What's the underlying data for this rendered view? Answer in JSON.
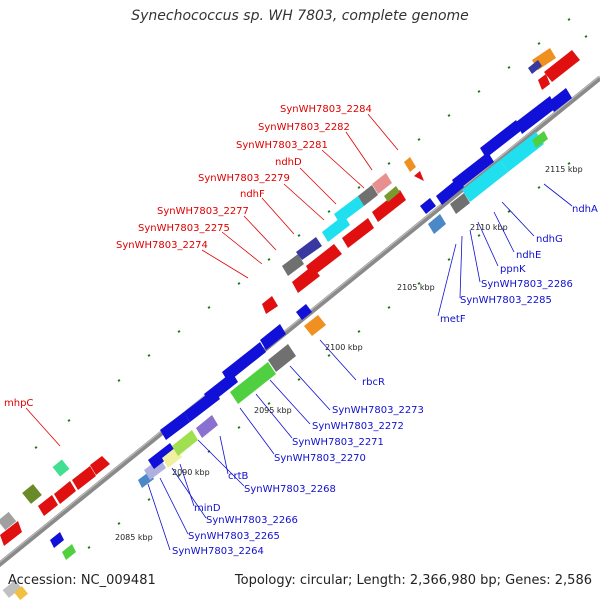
{
  "header": {
    "title": "Synechococcus sp. WH 7803, complete genome"
  },
  "footer": {
    "accession": "Accession: NC_009481",
    "summary": "Topology: circular; Length: 2,366,980 bp; Genes: 2,586"
  },
  "colors": {
    "reverse_strand": "#e01010",
    "forward_strand": "#1010d8",
    "backbone": "#8a8a8a",
    "tick": "#1a7a1a",
    "highlight_cyan": "#20e0f0",
    "highlight_green": "#50d040",
    "grey": "#707070",
    "orange": "#f09020",
    "steelblue": "#4a88c8"
  },
  "scale_labels": [
    "2085 kbp",
    "2090 kbp",
    "2095 kbp",
    "2100 kbp",
    "2105 kbp",
    "2110 kbp",
    "2115 kbp"
  ],
  "labels_reverse": [
    "SynWH7803_2284",
    "SynWH7803_2282",
    "SynWH7803_2281",
    "ndhD",
    "SynWH7803_2279",
    "ndhF",
    "SynWH7803_2277",
    "SynWH7803_2275",
    "SynWH7803_2274",
    "mhpC"
  ],
  "labels_forward": [
    "ndhA",
    "ndhG",
    "ndhE",
    "ppnK",
    "SynWH7803_2286",
    "SynWH7803_2285",
    "metF",
    "rbcR",
    "SynWH7803_2273",
    "SynWH7803_2272",
    "SynWH7803_2271",
    "SynWH7803_2270",
    "crtB",
    "SynWH7803_2268",
    "minD",
    "SynWH7803_2266",
    "SynWH7803_2265",
    "SynWH7803_2264"
  ]
}
